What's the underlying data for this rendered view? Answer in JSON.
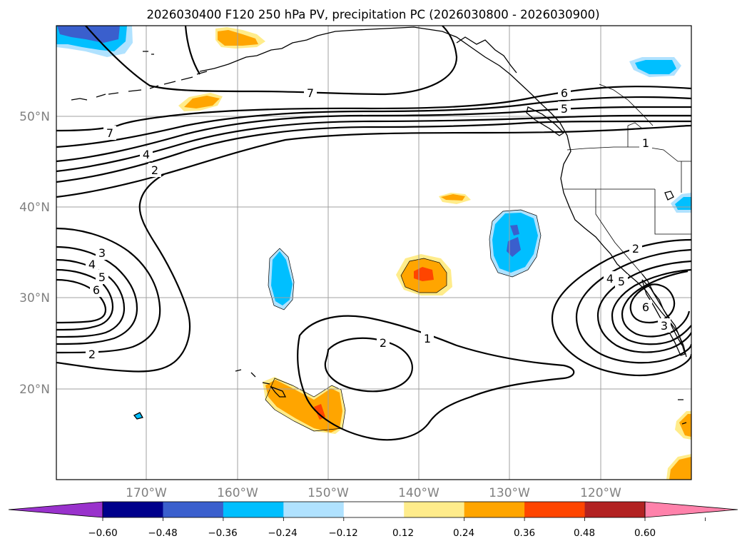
{
  "title": "2026030400 F120 250 hPa PV, precipitation PC (2026030800 - 2026030900)",
  "lat_labels": [
    "50°N",
    "40°N",
    "30°N",
    "20°N"
  ],
  "lon_labels": [
    "170°W",
    "160°W",
    "150°W",
    "140°W",
    "130°W",
    "120°W"
  ],
  "colorbar": {
    "ticks": [
      "−0.60",
      "−0.48",
      "−0.36",
      "−0.24",
      "−0.12",
      "0.12",
      "0.24",
      "0.36",
      "0.48",
      "0.60"
    ],
    "colors": [
      "#9932cc",
      "#00008b",
      "#3a5fcd",
      "#00bfff",
      "#b0e2ff",
      "#ffffff",
      "#ffec8b",
      "#ffa500",
      "#ff4500",
      "#b22222",
      "#ff82ab"
    ]
  },
  "contour_labels": [
    "7",
    "4",
    "2",
    "7",
    "6",
    "5",
    "1",
    "3",
    "4",
    "5",
    "6",
    "2",
    "1",
    "2",
    "2",
    "4",
    "5",
    "6",
    "3"
  ]
}
